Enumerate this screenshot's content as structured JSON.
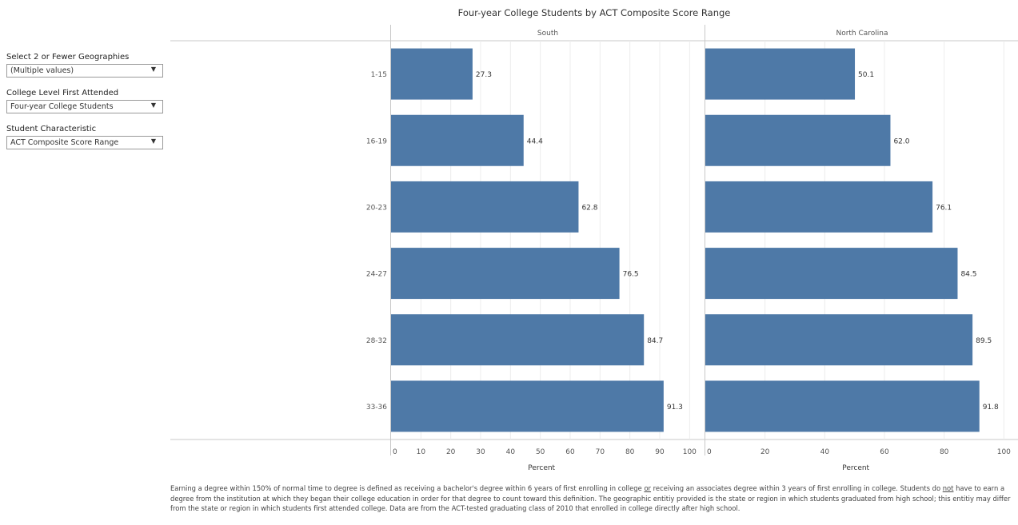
{
  "filters": [
    {
      "label": "Select 2 or Fewer Geographies",
      "value": "(Multiple values)"
    },
    {
      "label": "College Level First Attended",
      "value": "Four-year College Students"
    },
    {
      "label": "Student Characteristic",
      "value": "ACT Composite Score Range"
    }
  ],
  "dropdown_icon": "caret-down-icon",
  "footnote": {
    "p1": "Earning a degree within 150% of normal time to degree is defined as receiving a bachelor's degree within 6 years of first enrolling in college ",
    "or": "or",
    "p2": " receiving an associates degree within 3 years of first enrolling in college. Students do ",
    "not": "not",
    "p3": " have to earn a degree from the institution at which they began their college education in order for that degree to count toward this definition. The geographic entitiy provided is the state or region in which students graduated from high school; this entitiy may differ from the state or region in which students first attended college. Data are from the ACT-tested graduating class of 2010 that enrolled in college directly after high school."
  },
  "colors": {
    "bar": "#4e79a7",
    "grid": "#ececec",
    "axis": "#c8c8c8",
    "text": "#555555"
  },
  "chart_data": {
    "type": "bar",
    "orientation": "horizontal",
    "title": "Four-year College Students by ACT Composite Score Range",
    "categories": [
      "1-15",
      "16-19",
      "20-23",
      "24-27",
      "28-32",
      "33-36"
    ],
    "series": [
      {
        "name": "South",
        "values": [
          27.3,
          44.4,
          62.8,
          76.5,
          84.7,
          91.3
        ]
      },
      {
        "name": "North Carolina",
        "values": [
          50.1,
          62.0,
          76.1,
          84.5,
          89.5,
          91.8
        ]
      }
    ],
    "xlabel": "Percent",
    "ylabel": "",
    "panels": [
      {
        "name": "South",
        "xlim": [
          0,
          105
        ],
        "ticks": [
          0,
          10,
          20,
          30,
          40,
          50,
          60,
          70,
          80,
          90,
          100
        ]
      },
      {
        "name": "North Carolina",
        "xlim": [
          0,
          105
        ],
        "ticks": [
          0,
          20,
          40,
          60,
          80,
          100
        ]
      }
    ],
    "grid": true,
    "data_labels": true
  }
}
